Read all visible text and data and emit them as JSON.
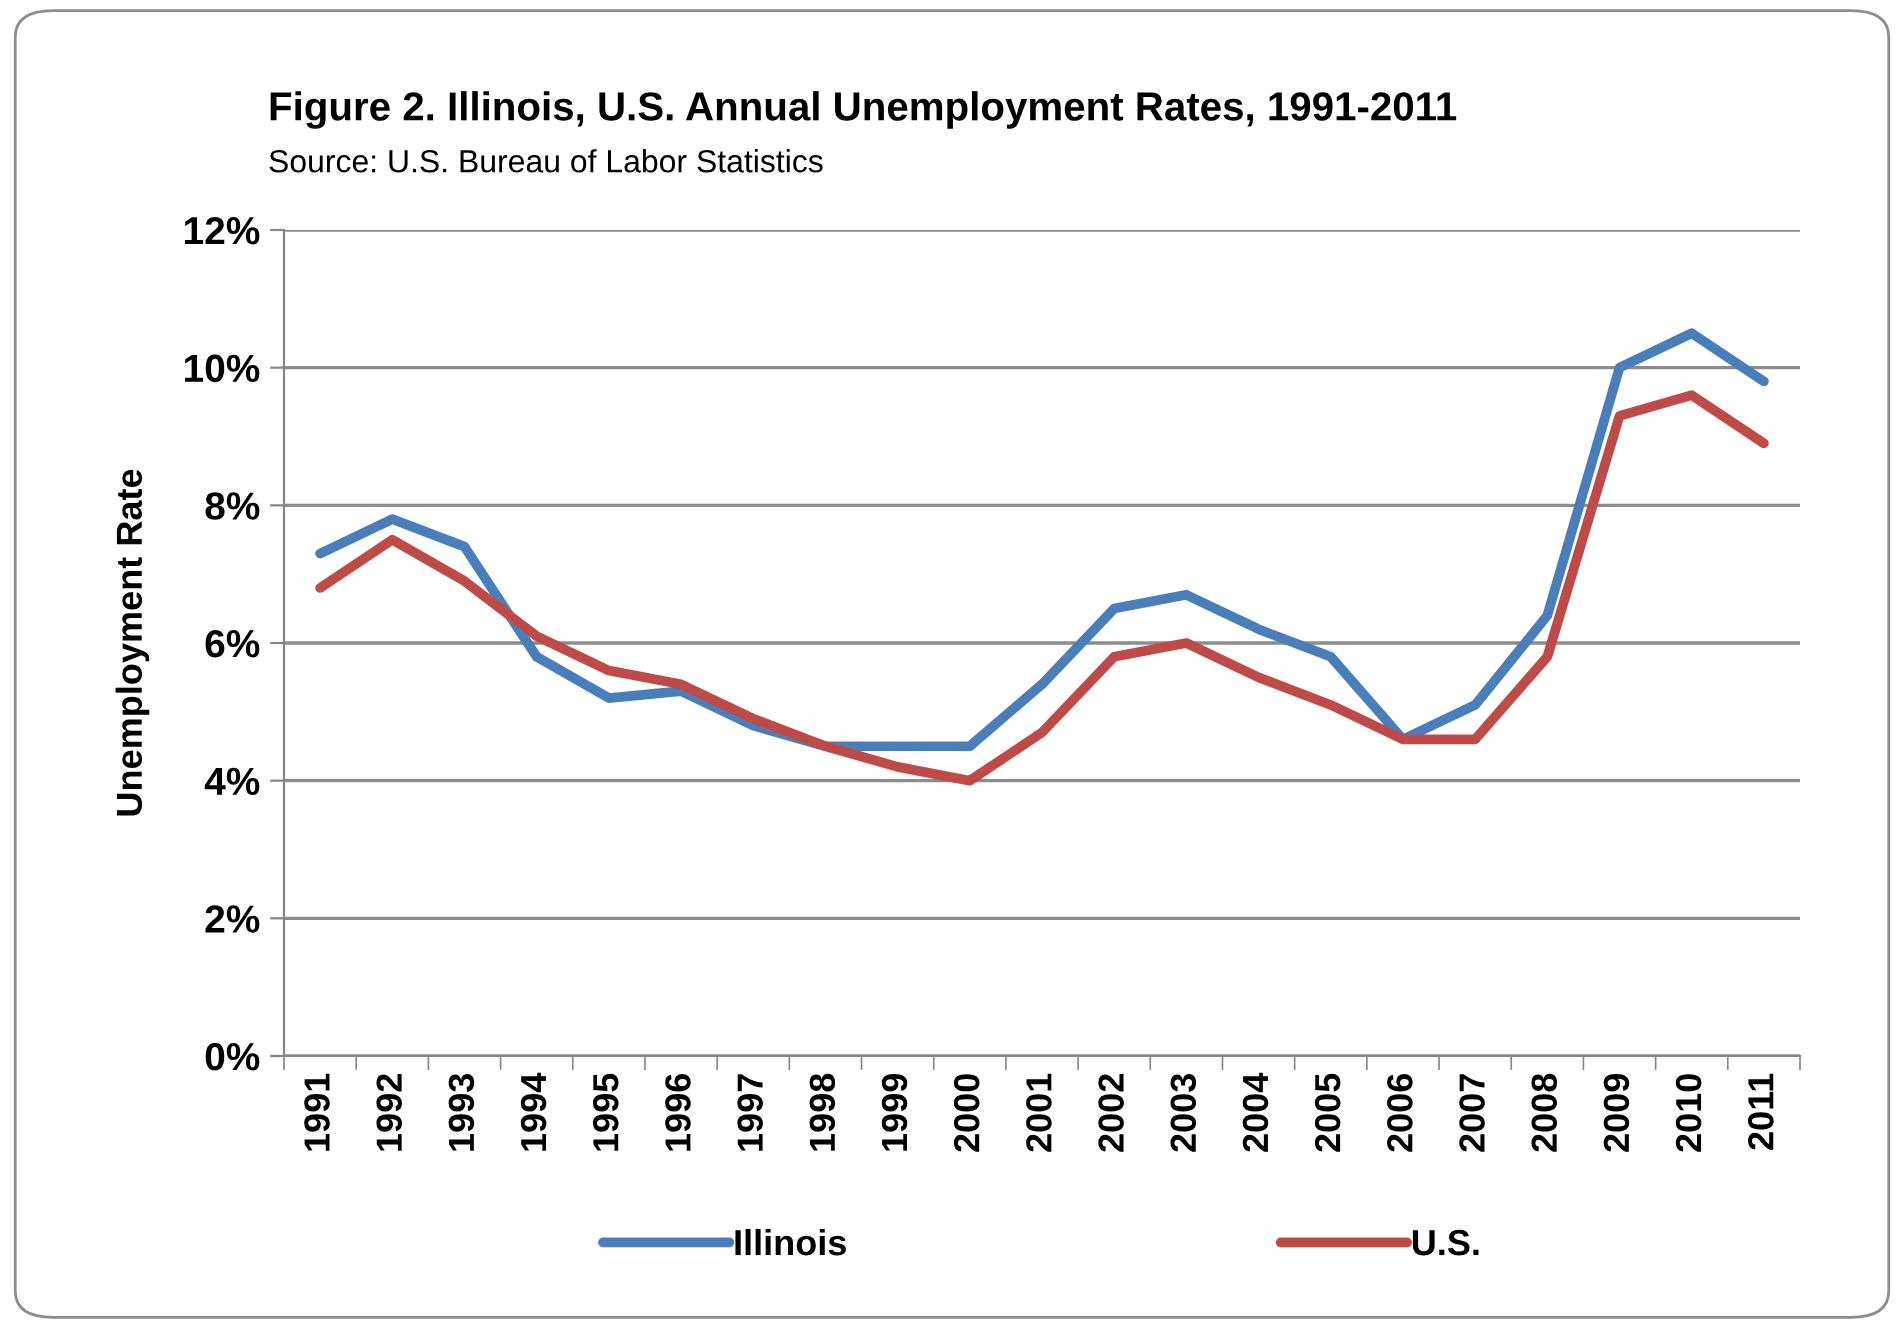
{
  "chart_data": {
    "type": "line",
    "title": "Figure 2. Illinois, U.S. Annual Unemployment Rates, 1991-2011",
    "subtitle": "Source: U.S. Bureau of Labor Statistics",
    "ylabel": "Unemployment Rate",
    "categories": [
      "1991",
      "1992",
      "1993",
      "1994",
      "1995",
      "1996",
      "1997",
      "1998",
      "1999",
      "2000",
      "2001",
      "2002",
      "2003",
      "2004",
      "2005",
      "2006",
      "2007",
      "2008",
      "2009",
      "2010",
      "2011"
    ],
    "series": [
      {
        "name": "Illinois",
        "color": "#4a7ebb",
        "values": [
          7.3,
          7.8,
          7.4,
          5.8,
          5.2,
          5.3,
          4.8,
          4.5,
          4.5,
          4.5,
          5.4,
          6.5,
          6.7,
          6.2,
          5.8,
          4.6,
          5.1,
          6.4,
          10.0,
          10.5,
          9.8
        ]
      },
      {
        "name": "U.S.",
        "color": "#be4b48",
        "values": [
          6.8,
          7.5,
          6.9,
          6.1,
          5.6,
          5.4,
          4.9,
          4.5,
          4.2,
          4.0,
          4.7,
          5.8,
          6.0,
          5.5,
          5.1,
          4.6,
          4.6,
          5.8,
          9.3,
          9.6,
          8.9
        ]
      }
    ],
    "ylim": [
      0,
      12
    ],
    "yticks": [
      {
        "value": 0,
        "label": "0%"
      },
      {
        "value": 2,
        "label": "2%"
      },
      {
        "value": 4,
        "label": "4%"
      },
      {
        "value": 6,
        "label": "6%"
      },
      {
        "value": 8,
        "label": "8%"
      },
      {
        "value": 10,
        "label": "10%"
      },
      {
        "value": 12,
        "label": "12%"
      }
    ],
    "grid": "y",
    "legend": "bottom",
    "marker": "none",
    "line_style": "solid"
  }
}
